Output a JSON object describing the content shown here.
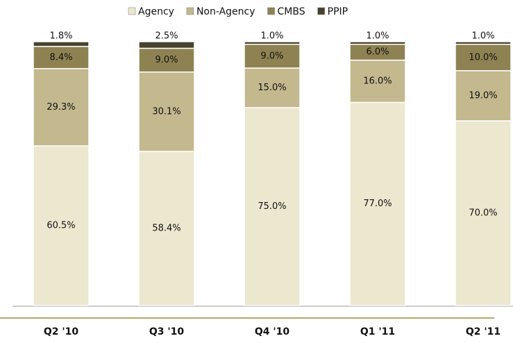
{
  "chart_data": {
    "type": "stacked_bar",
    "categories": [
      "Q2 '10",
      "Q3 '10",
      "Q4 '10",
      "Q1 '11",
      "Q2 '11"
    ],
    "series": [
      {
        "name": "Agency",
        "color": "#ece7cf",
        "values": [
          60.5,
          58.4,
          75.0,
          77.0,
          70.0
        ],
        "value_labels": [
          "60.5%",
          "58.4%",
          "75.0%",
          "77.0%",
          "70.0%"
        ]
      },
      {
        "name": "Non-Agency",
        "color": "#c3b88e",
        "values": [
          29.3,
          30.1,
          15.0,
          16.0,
          19.0
        ],
        "value_labels": [
          "29.3%",
          "30.1%",
          "15.0%",
          "16.0%",
          "19.0%"
        ]
      },
      {
        "name": "CMBS",
        "color": "#8e8253",
        "values": [
          8.4,
          9.0,
          9.0,
          6.0,
          10.0
        ],
        "value_labels": [
          "8.4%",
          "9.0%",
          "9.0%",
          "6.0%",
          "10.0%"
        ]
      },
      {
        "name": "PPIP",
        "color": "#48432e",
        "values": [
          1.8,
          2.5,
          1.0,
          1.0,
          1.0
        ],
        "value_labels": [
          "1.8%",
          "2.5%",
          "1.0%",
          "1.0%",
          "1.0%"
        ]
      }
    ],
    "legend": "top"
  }
}
